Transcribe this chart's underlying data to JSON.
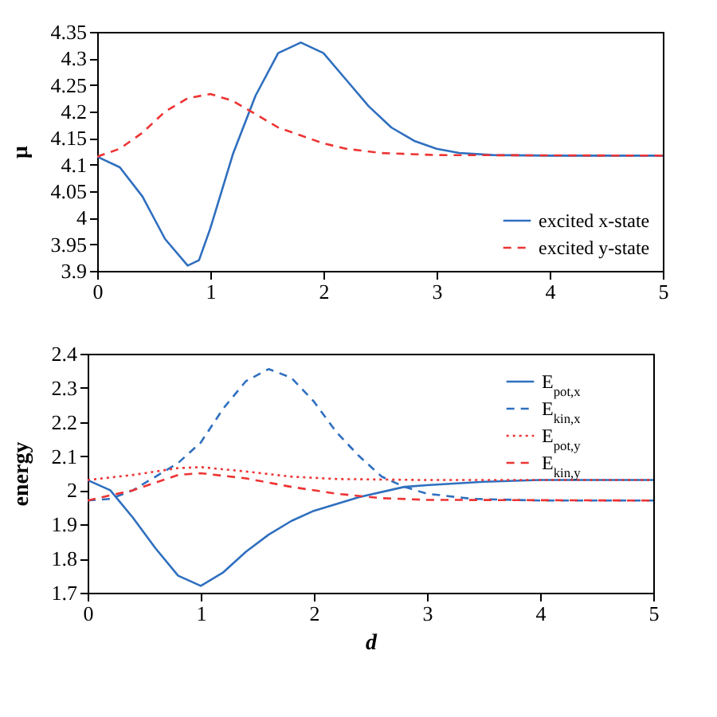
{
  "chart_data": [
    {
      "type": "line",
      "ylabel": "μ",
      "xlim": [
        0,
        5
      ],
      "xticks": [
        0,
        1,
        2,
        3,
        4,
        5
      ],
      "ylim": [
        3.9,
        4.35
      ],
      "yticks": [
        3.9,
        3.95,
        4,
        4.05,
        4.1,
        4.15,
        4.2,
        4.25,
        4.3,
        4.35
      ],
      "legend": "bottom right",
      "grid": false,
      "series": [
        {
          "name": "excited x-state",
          "color": "#2f6fbf",
          "line_style": "solid",
          "x": [
            0,
            0.2,
            0.4,
            0.6,
            0.8,
            0.9,
            1.0,
            1.2,
            1.4,
            1.6,
            1.8,
            2.0,
            2.2,
            2.4,
            2.6,
            2.8,
            3.0,
            3.2,
            3.5,
            4,
            5
          ],
          "values": [
            4.115,
            4.095,
            4.04,
            3.96,
            3.91,
            3.92,
            3.98,
            4.12,
            4.23,
            4.31,
            4.33,
            4.31,
            4.26,
            4.21,
            4.17,
            4.145,
            4.13,
            4.122,
            4.118,
            4.117,
            4.117
          ]
        },
        {
          "name": "excited y-state",
          "color": "#ee3333",
          "line_style": "dashed",
          "x": [
            0,
            0.2,
            0.4,
            0.6,
            0.8,
            1.0,
            1.2,
            1.4,
            1.6,
            1.8,
            2.0,
            2.2,
            2.5,
            3,
            5
          ],
          "values": [
            4.115,
            4.13,
            4.16,
            4.2,
            4.225,
            4.233,
            4.22,
            4.195,
            4.17,
            4.155,
            4.14,
            4.13,
            4.122,
            4.118,
            4.117
          ]
        }
      ]
    },
    {
      "type": "line",
      "xlabel": "d",
      "ylabel": "energy",
      "xlim": [
        0,
        5
      ],
      "xticks": [
        0,
        1,
        2,
        3,
        4,
        5
      ],
      "ylim": [
        1.7,
        2.4
      ],
      "yticks": [
        1.7,
        1.8,
        1.9,
        2,
        2.1,
        2.2,
        2.3,
        2.4
      ],
      "legend": "top right",
      "grid": false,
      "series": [
        {
          "name": "E$_{pot,x}$",
          "color": "#2f6fbf",
          "line_style": "solid",
          "x": [
            0,
            0.2,
            0.4,
            0.6,
            0.8,
            1.0,
            1.2,
            1.4,
            1.6,
            1.8,
            2,
            2.4,
            2.8,
            3,
            3.5,
            4,
            5
          ],
          "values": [
            2.03,
            2.0,
            1.92,
            1.83,
            1.75,
            1.72,
            1.76,
            1.82,
            1.87,
            1.91,
            1.94,
            1.98,
            2.01,
            2.015,
            2.025,
            2.03,
            2.03
          ]
        },
        {
          "name": "E$_{kin,x}$",
          "color": "#2f6fbf",
          "line_style": "dashed",
          "x": [
            0,
            0.2,
            0.4,
            0.6,
            0.8,
            1.0,
            1.2,
            1.4,
            1.6,
            1.8,
            2.0,
            2.2,
            2.4,
            2.6,
            2.8,
            3.0,
            3.4,
            4,
            5
          ],
          "values": [
            1.97,
            1.975,
            2.0,
            2.04,
            2.08,
            2.14,
            2.24,
            2.32,
            2.355,
            2.33,
            2.26,
            2.17,
            2.1,
            2.04,
            2.01,
            1.99,
            1.975,
            1.97,
            1.97
          ]
        },
        {
          "name": "E$_{pot,y}$",
          "color": "#ee3333",
          "line_style": "dotted",
          "x": [
            0,
            0.4,
            0.8,
            1.0,
            1.4,
            1.8,
            2.2,
            3,
            5
          ],
          "values": [
            2.03,
            2.045,
            2.065,
            2.068,
            2.055,
            2.04,
            2.033,
            2.03,
            2.03
          ]
        },
        {
          "name": "E$_{kin,y}$",
          "color": "#ee3333",
          "line_style": "dashed",
          "x": [
            0,
            0.4,
            0.8,
            1.0,
            1.4,
            1.8,
            2.2,
            2.6,
            3,
            5
          ],
          "values": [
            1.97,
            2.0,
            2.045,
            2.05,
            2.035,
            2.01,
            1.99,
            1.977,
            1.972,
            1.97
          ]
        }
      ]
    }
  ]
}
